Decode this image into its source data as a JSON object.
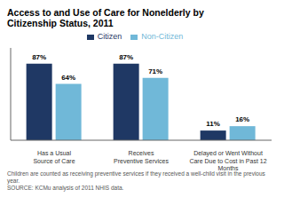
{
  "chart_data": {
    "type": "bar",
    "title": "Access to and Use of Care for Nonelderly by\nCitizenship Status, 2011",
    "categories": [
      "Has a Usual\nSource of Care",
      "Receives\nPreventive Services",
      "Delayed or Went Without\nCare Due to Cost in Past 12\nMonths"
    ],
    "series": [
      {
        "name": "Citizen",
        "color": "#1f3864",
        "values": [
          87,
          87,
          11
        ],
        "value_labels": [
          "87%",
          "87%",
          "11%"
        ]
      },
      {
        "name": "Non-Citizen",
        "color": "#70b8d8",
        "values": [
          64,
          71,
          16
        ],
        "value_labels": [
          "64%",
          "71%",
          "16%"
        ]
      }
    ],
    "ylim": [
      0,
      105
    ],
    "data_labels": true,
    "tick_labels": "x",
    "grid": false,
    "legend": "top",
    "annotations": [
      "Children are counted as receiving preventive services if they received a well-child visit in the previous year.",
      "SOURCE: KCMu analysis of 2011 NHIS data."
    ]
  }
}
